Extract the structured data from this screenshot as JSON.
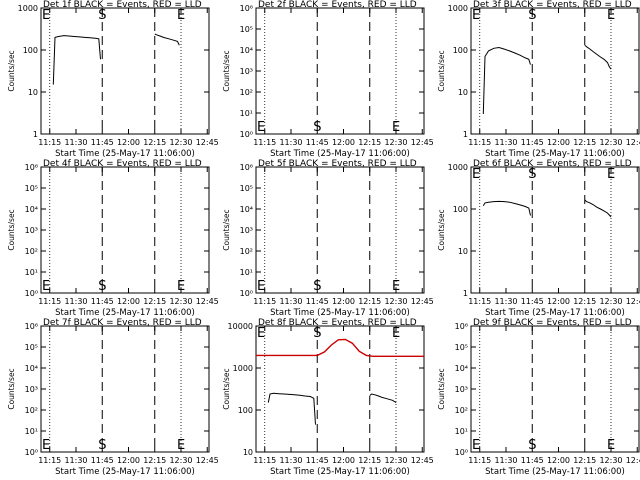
{
  "chart_data": [
    {
      "type": "line",
      "title": "Det 1f BLACK = Events, RED = LLD",
      "xlabel": "Start Time (25-May-17 11:06:00)",
      "ylabel": "Counts/sec",
      "yscale": "log",
      "ylim": [
        1,
        1000
      ],
      "ytick_labels": [
        "1",
        "10",
        "100",
        "1000"
      ],
      "xlim": [
        "11:10",
        "12:46"
      ],
      "xtick_labels": [
        "11:15",
        "11:30",
        "11:45",
        "12:00",
        "12:15",
        "12:30",
        "12:45"
      ],
      "markers": {
        "S": "11:45",
        "E_start": "11:10",
        "E_end": "12:30"
      },
      "series": [
        {
          "color": "#000000",
          "x": [
            "11:17",
            "11:18",
            "11:20",
            "11:23",
            "11:26",
            "11:29",
            "11:32",
            "11:35",
            "11:38",
            "11:41",
            "11:43",
            "11:44"
          ],
          "y": [
            15,
            200,
            210,
            220,
            215,
            210,
            205,
            200,
            195,
            190,
            185,
            60
          ]
        },
        {
          "color": "#000000",
          "x": [
            "12:15",
            "12:16",
            "12:18",
            "12:20",
            "12:23",
            "12:26",
            "12:28",
            "12:29"
          ],
          "y": [
            240,
            230,
            215,
            200,
            185,
            170,
            160,
            130
          ]
        }
      ]
    },
    {
      "type": "line",
      "title": "Det 2f BLACK = Events, RED = LLD",
      "xlabel": "Start Time (25-May-17 11:06:00)",
      "ylabel": "Counts/sec",
      "yscale": "log",
      "ylim": [
        1,
        1000000
      ],
      "ytick_labels": [
        "10⁰",
        "10¹",
        "10²",
        "10³",
        "10⁴",
        "10⁵",
        "10⁶"
      ],
      "xlim": [
        "11:10",
        "12:46"
      ],
      "xtick_labels": [
        "11:15",
        "11:30",
        "11:45",
        "12:00",
        "12:15",
        "12:30",
        "12:45"
      ],
      "markers": {
        "S": "11:45",
        "E_start": "11:10",
        "E_end": "12:30"
      },
      "series": []
    },
    {
      "type": "line",
      "title": "Det 3f BLACK = Events, RED = LLD",
      "xlabel": "Start Time (25-May-17 11:06:00)",
      "ylabel": "Counts/sec",
      "yscale": "log",
      "ylim": [
        1,
        1000
      ],
      "ytick_labels": [
        "1",
        "10",
        "100",
        "1000"
      ],
      "xlim": [
        "11:10",
        "12:46"
      ],
      "xtick_labels": [
        "11:15",
        "11:30",
        "11:45",
        "12:00",
        "12:15",
        "12:30",
        "12:45"
      ],
      "markers": {
        "S": "11:45",
        "E_start": "11:10",
        "E_end": "12:30"
      },
      "series": [
        {
          "color": "#000000",
          "x": [
            "11:17",
            "11:18",
            "11:20",
            "11:23",
            "11:26",
            "11:29",
            "11:32",
            "11:35",
            "11:38",
            "11:41",
            "11:43",
            "11:44"
          ],
          "y": [
            3,
            70,
            95,
            110,
            115,
            105,
            95,
            85,
            75,
            65,
            60,
            45
          ]
        },
        {
          "color": "#000000",
          "x": [
            "12:15",
            "12:16",
            "12:18",
            "12:20",
            "12:22",
            "12:24",
            "12:26",
            "12:28",
            "12:29",
            "12:30"
          ],
          "y": [
            130,
            120,
            105,
            90,
            78,
            68,
            60,
            50,
            40,
            35
          ]
        }
      ]
    },
    {
      "type": "line",
      "title": "Det 4f BLACK = Events, RED = LLD",
      "xlabel": "Start Time (25-May-17 11:06:00)",
      "ylabel": "Counts/sec",
      "yscale": "log",
      "ylim": [
        1,
        1000000
      ],
      "ytick_labels": [
        "10⁰",
        "10¹",
        "10²",
        "10³",
        "10⁴",
        "10⁵",
        "10⁶"
      ],
      "xlim": [
        "11:10",
        "12:46"
      ],
      "xtick_labels": [
        "11:15",
        "11:30",
        "11:45",
        "12:00",
        "12:15",
        "12:30",
        "12:45"
      ],
      "markers": {
        "S": "11:45",
        "E_start": "11:10",
        "E_end": "12:30"
      },
      "series": []
    },
    {
      "type": "line",
      "title": "Det 5f BLACK = Events, RED = LLD",
      "xlabel": "Start Time (25-May-17 11:06:00)",
      "ylabel": "Counts/sec",
      "yscale": "log",
      "ylim": [
        1,
        1000000
      ],
      "ytick_labels": [
        "10⁰",
        "10¹",
        "10²",
        "10³",
        "10⁴",
        "10⁵",
        "10⁶"
      ],
      "xlim": [
        "11:10",
        "12:46"
      ],
      "xtick_labels": [
        "11:15",
        "11:30",
        "11:45",
        "12:00",
        "12:15",
        "12:30",
        "12:45"
      ],
      "markers": {
        "S": "11:45",
        "E_start": "11:10",
        "E_end": "12:30"
      },
      "series": []
    },
    {
      "type": "line",
      "title": "Det 6f BLACK = Events, RED = LLD",
      "xlabel": "Start Time (25-May-17 11:06:00)",
      "ylabel": "Counts/sec",
      "yscale": "log",
      "ylim": [
        1,
        1000
      ],
      "ytick_labels": [
        "1",
        "10",
        "100",
        "1000"
      ],
      "xlim": [
        "11:10",
        "12:46"
      ],
      "xtick_labels": [
        "11:15",
        "11:30",
        "11:45",
        "12:00",
        "12:15",
        "12:30",
        "12:45"
      ],
      "markers": {
        "S": "11:45",
        "E_start": "11:10",
        "E_end": "12:30"
      },
      "series": [
        {
          "color": "#000000",
          "x": [
            "11:17",
            "11:18",
            "11:20",
            "11:23",
            "11:26",
            "11:29",
            "11:32",
            "11:35",
            "11:38",
            "11:41",
            "11:43",
            "11:44"
          ],
          "y": [
            120,
            140,
            145,
            150,
            152,
            150,
            145,
            135,
            125,
            115,
            105,
            70
          ]
        },
        {
          "color": "#000000",
          "x": [
            "12:15",
            "12:16",
            "12:18",
            "12:20",
            "12:22",
            "12:24",
            "12:26",
            "12:28",
            "12:29",
            "12:30"
          ],
          "y": [
            165,
            150,
            140,
            125,
            110,
            100,
            90,
            80,
            72,
            65
          ]
        }
      ]
    },
    {
      "type": "line",
      "title": "Det 7f BLACK = Events, RED = LLD",
      "xlabel": "Start Time (25-May-17 11:06:00)",
      "ylabel": "Counts/sec",
      "yscale": "log",
      "ylim": [
        1,
        1000000
      ],
      "ytick_labels": [
        "10⁰",
        "10¹",
        "10²",
        "10³",
        "10⁴",
        "10⁵",
        "10⁶"
      ],
      "xlim": [
        "11:10",
        "12:46"
      ],
      "xtick_labels": [
        "11:15",
        "11:30",
        "11:45",
        "12:00",
        "12:15",
        "12:30",
        "12:45"
      ],
      "markers": {
        "S": "11:45",
        "E_start": "11:10",
        "E_end": "12:30"
      },
      "series": []
    },
    {
      "type": "line",
      "title": "Det 8f BLACK = Events, RED = LLD",
      "xlabel": "Start Time (25-May-17 11:06:00)",
      "ylabel": "Counts/sec",
      "yscale": "log",
      "ylim": [
        10,
        10000
      ],
      "ytick_labels": [
        "10",
        "100",
        "1000",
        "10000"
      ],
      "xlim": [
        "11:10",
        "12:46"
      ],
      "xtick_labels": [
        "11:15",
        "11:30",
        "11:45",
        "12:00",
        "12:15",
        "12:30",
        "12:45"
      ],
      "markers": {
        "S": "11:45",
        "E_start": "11:10",
        "E_end": "12:30"
      },
      "series": [
        {
          "color": "#cc0000",
          "x": [
            "11:10",
            "11:20",
            "11:30",
            "11:40",
            "11:45",
            "11:49",
            "11:53",
            "11:57",
            "12:01",
            "12:05",
            "12:09",
            "12:13",
            "12:17",
            "12:25",
            "12:35",
            "12:46"
          ],
          "y": [
            2000,
            2000,
            2000,
            2000,
            2000,
            2400,
            3500,
            4700,
            4800,
            3900,
            2500,
            2000,
            1900,
            1900,
            1900,
            1900
          ]
        },
        {
          "color": "#000000",
          "x": [
            "11:17",
            "11:18",
            "11:20",
            "11:23",
            "11:26",
            "11:29",
            "11:32",
            "11:35",
            "11:38",
            "11:41",
            "11:43",
            "11:44"
          ],
          "y": [
            150,
            240,
            250,
            245,
            240,
            235,
            230,
            225,
            215,
            210,
            190,
            45
          ]
        },
        {
          "color": "#000000",
          "x": [
            "12:15",
            "12:16",
            "12:18",
            "12:20",
            "12:22",
            "12:24",
            "12:26",
            "12:28",
            "12:29",
            "12:30"
          ],
          "y": [
            220,
            240,
            230,
            215,
            200,
            190,
            180,
            170,
            160,
            150
          ]
        }
      ]
    },
    {
      "type": "line",
      "title": "Det 9f BLACK = Events, RED = LLD",
      "xlabel": "Start Time (25-May-17 11:06:00)",
      "ylabel": "Counts/sec",
      "yscale": "log",
      "ylim": [
        1,
        1000000
      ],
      "ytick_labels": [
        "10⁰",
        "10¹",
        "10²",
        "10³",
        "10⁴",
        "10⁵",
        "10⁶"
      ],
      "xlim": [
        "11:10",
        "12:46"
      ],
      "xtick_labels": [
        "11:15",
        "11:30",
        "11:45",
        "12:00",
        "12:15",
        "12:30",
        "12:45"
      ],
      "markers": {
        "S": "11:45",
        "E_start": "11:10",
        "E_end": "12:30"
      },
      "series": []
    }
  ],
  "style": {
    "dotted_lines_at": [
      "11:15",
      "12:30"
    ],
    "dashed_lines_at": [
      "11:45",
      "12:15"
    ],
    "marker_labels": {
      "start": "S",
      "end": "E"
    }
  }
}
